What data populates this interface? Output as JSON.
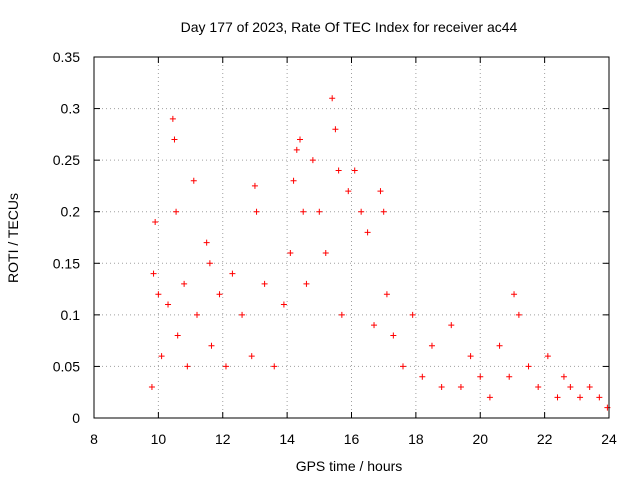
{
  "chart_data": {
    "type": "scatter",
    "title": "Day 177 of 2023, Rate Of TEC Index for receiver ac44",
    "xlabel": "GPS time / hours",
    "ylabel": "ROTI / TECUs",
    "xlim": [
      8,
      24
    ],
    "ylim": [
      0,
      0.35
    ],
    "xticks": [
      "8",
      "10",
      "12",
      "14",
      "16",
      "18",
      "20",
      "22",
      "24"
    ],
    "yticks": [
      "0",
      "0.05",
      "0.1",
      "0.15",
      "0.2",
      "0.25",
      "0.3",
      "0.35"
    ],
    "grid": true,
    "legend": "none",
    "marker": "+",
    "marker_color": "#ff0000",
    "series": [
      {
        "x": [
          9.8,
          9.85,
          9.9,
          10.0,
          10.1,
          10.3,
          10.45,
          10.5,
          10.55,
          10.6,
          10.8,
          10.9,
          11.1,
          11.2,
          11.5,
          11.6,
          11.65,
          11.9,
          12.1,
          12.3,
          12.6,
          12.9,
          13.0,
          13.05,
          13.3,
          13.6,
          13.9,
          14.1,
          14.2,
          14.3,
          14.4,
          14.5,
          14.6,
          14.8,
          15.0,
          15.2,
          15.4,
          15.5,
          15.6,
          15.7,
          15.9,
          16.1,
          16.3,
          16.5,
          16.7,
          16.9,
          17.0,
          17.1,
          17.3,
          17.6,
          17.9,
          18.2,
          18.5,
          18.8,
          19.1,
          19.4,
          19.7,
          20.0,
          20.3,
          20.6,
          20.9,
          21.05,
          21.2,
          21.5,
          21.8,
          22.1,
          22.4,
          22.6,
          22.8,
          23.1,
          23.4,
          23.7,
          23.95
        ],
        "y": [
          0.03,
          0.14,
          0.19,
          0.12,
          0.06,
          0.11,
          0.29,
          0.27,
          0.2,
          0.08,
          0.13,
          0.05,
          0.23,
          0.1,
          0.17,
          0.15,
          0.07,
          0.12,
          0.05,
          0.14,
          0.1,
          0.06,
          0.225,
          0.2,
          0.13,
          0.05,
          0.11,
          0.16,
          0.23,
          0.26,
          0.27,
          0.2,
          0.13,
          0.25,
          0.2,
          0.16,
          0.31,
          0.28,
          0.24,
          0.1,
          0.22,
          0.24,
          0.2,
          0.18,
          0.09,
          0.22,
          0.2,
          0.12,
          0.08,
          0.05,
          0.1,
          0.04,
          0.07,
          0.03,
          0.09,
          0.03,
          0.06,
          0.04,
          0.02,
          0.07,
          0.04,
          0.12,
          0.1,
          0.05,
          0.03,
          0.06,
          0.02,
          0.04,
          0.03,
          0.02,
          0.03,
          0.02,
          0.01
        ]
      }
    ]
  }
}
